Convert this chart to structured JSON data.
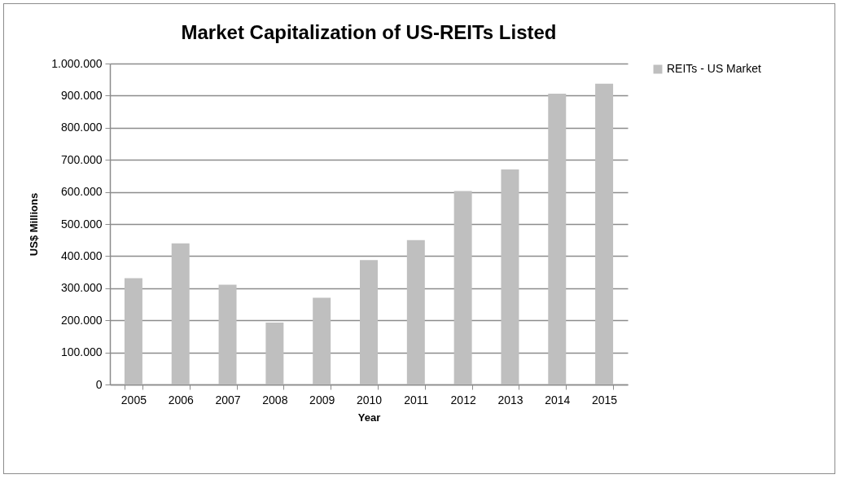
{
  "chart_data": {
    "type": "bar",
    "title": "Market Capitalization of US-REITs Listed",
    "xlabel": "Year",
    "ylabel": "US$ Millions",
    "categories": [
      "2005",
      "2006",
      "2007",
      "2008",
      "2009",
      "2010",
      "2011",
      "2012",
      "2013",
      "2014",
      "2015"
    ],
    "series": [
      {
        "name": "REITs - US Market",
        "color": "#bfbfbf",
        "values": [
          331000,
          440000,
          311000,
          193000,
          270000,
          388000,
          450000,
          603000,
          670000,
          906000,
          937000
        ]
      }
    ],
    "ylim": [
      0,
      1000000
    ],
    "yticks": [
      {
        "value": 0,
        "label": "0"
      },
      {
        "value": 100000,
        "label": "100.000"
      },
      {
        "value": 200000,
        "label": "200.000"
      },
      {
        "value": 300000,
        "label": "300.000"
      },
      {
        "value": 400000,
        "label": "400.000"
      },
      {
        "value": 500000,
        "label": "500.000"
      },
      {
        "value": 600000,
        "label": "600.000"
      },
      {
        "value": 700000,
        "label": "700.000"
      },
      {
        "value": 800000,
        "label": "800.000"
      },
      {
        "value": 900000,
        "label": "900.000"
      },
      {
        "value": 1000000,
        "label": "1.000.000"
      }
    ],
    "grid": "y",
    "legend": "right"
  }
}
